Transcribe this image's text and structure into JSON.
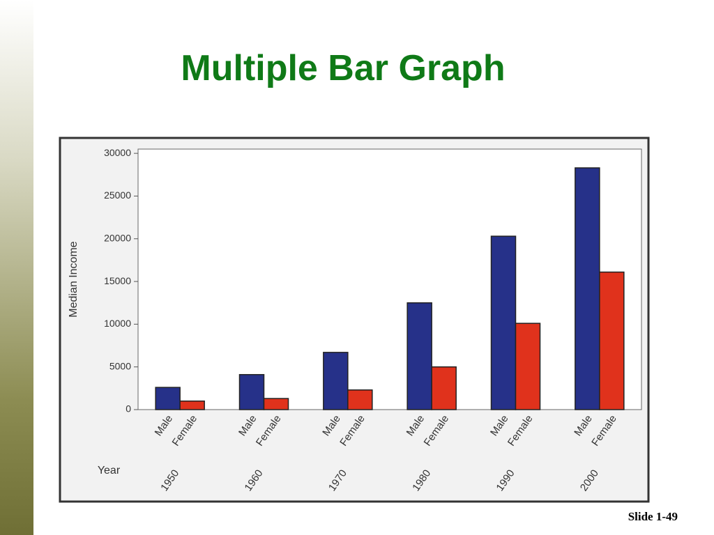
{
  "title": "Multiple Bar Graph",
  "footer": "Slide 1-49",
  "chart_data": {
    "type": "bar",
    "y_label": "Median Income",
    "x_label": "Year",
    "categories": [
      "1950",
      "1960",
      "1970",
      "1980",
      "1990",
      "2000"
    ],
    "series": [
      {
        "name": "Male",
        "color": "#263189",
        "values": [
          2600,
          4100,
          6700,
          12500,
          20300,
          28300
        ]
      },
      {
        "name": "Female",
        "color": "#e0321c",
        "values": [
          1000,
          1300,
          2300,
          5000,
          10100,
          16100
        ]
      }
    ],
    "ylim": [
      0,
      30500
    ],
    "yticks": [
      0,
      5000,
      10000,
      15000,
      20000,
      25000,
      30000
    ]
  }
}
